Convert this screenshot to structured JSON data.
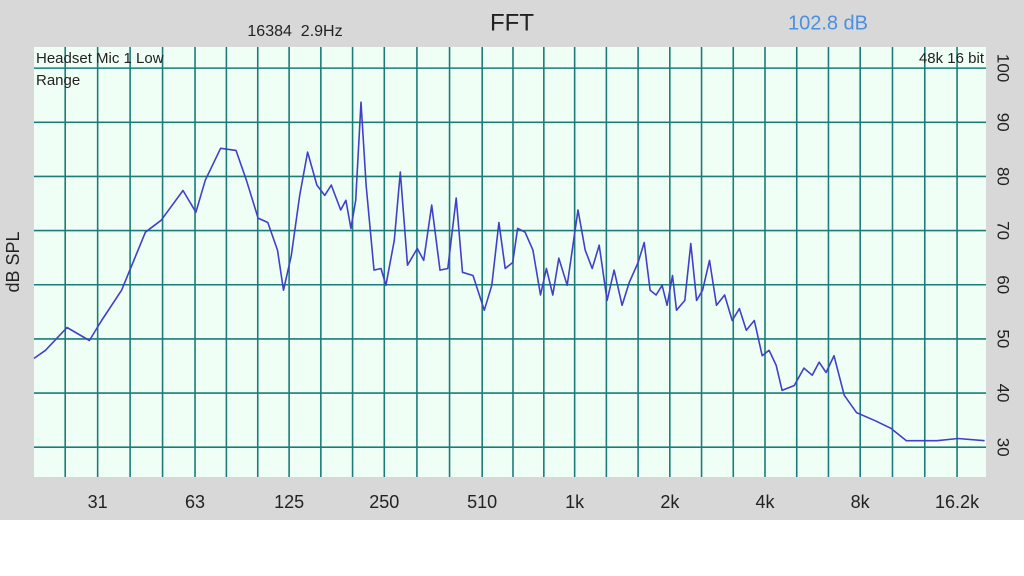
{
  "chart_data": {
    "type": "line",
    "title": "FFT",
    "info": "16384  2.9Hz",
    "level": "102.8 dB",
    "device": "Headset Mic 1 Low",
    "mode": "Range",
    "format": "48k 16 bit",
    "y_label": "dB SPL",
    "log_x": true,
    "grid": true,
    "color": "#4040c8",
    "xlim": [
      19.5,
      20000
    ],
    "ylim": [
      24.5,
      103.9
    ],
    "xticks": [
      31,
      63,
      125,
      250,
      510,
      {
        "value": 1000,
        "label": "1k"
      },
      {
        "value": 2000,
        "label": "2k"
      },
      {
        "value": 4000,
        "label": "4k"
      },
      {
        "value": 8000,
        "label": "8k"
      },
      {
        "value": 16200,
        "label": "16.2k"
      }
    ],
    "yticks": [
      30,
      40,
      50,
      60,
      70,
      80,
      90,
      100
    ],
    "x": [
      19.5,
      21.2,
      24.8,
      29.2,
      31.9,
      36.9,
      43.9,
      49.2,
      57.7,
      63.4,
      67.9,
      75.9,
      84.9,
      91.6,
      99.7,
      107,
      114.9,
      120,
      127,
      135,
      143,
      153,
      162,
      170,
      182,
      189,
      196,
      203,
      211,
      219,
      232,
      244,
      253,
      269,
      281,
      296,
      318,
      333,
      353,
      375,
      397,
      422,
      442,
      477,
      518,
      547,
      576,
      603,
      637,
      660,
      697,
      738,
      780,
      814,
      853,
      891,
      947,
      1025,
      1080,
      1136,
      1196,
      1267,
      1333,
      1413,
      1488,
      1587,
      1660,
      1733,
      1810,
      1890,
      1960,
      2040,
      2100,
      2230,
      2330,
      2430,
      2540,
      2670,
      2810,
      2980,
      3150,
      3320,
      3490,
      3700,
      3920,
      4120,
      4340,
      4530,
      4950,
      5310,
      5640,
      5930,
      6240,
      6610,
      7120,
      7790,
      8920,
      10000,
      11200,
      14000,
      16300,
      19800
    ],
    "values": [
      46.4,
      47.9,
      52.1,
      49.7,
      53.4,
      59.0,
      69.7,
      71.9,
      77.4,
      73.4,
      79.3,
      85.2,
      84.8,
      79.3,
      72.3,
      71.5,
      66.4,
      59.0,
      65.4,
      76.5,
      84.5,
      78.4,
      76.5,
      78.4,
      73.8,
      75.6,
      70.4,
      75.6,
      93.7,
      78.4,
      62.7,
      63.0,
      59.9,
      68.2,
      80.8,
      63.6,
      66.7,
      64.5,
      74.7,
      62.7,
      63.0,
      76.0,
      62.3,
      61.7,
      55.3,
      59.9,
      71.5,
      63.0,
      64.1,
      70.4,
      69.7,
      66.4,
      58.1,
      63.0,
      58.1,
      64.9,
      59.9,
      73.8,
      66.4,
      63.0,
      67.3,
      57.1,
      62.7,
      56.2,
      60.4,
      64.1,
      67.8,
      59.0,
      58.1,
      59.9,
      56.2,
      61.7,
      55.3,
      57.1,
      67.6,
      57.1,
      59.0,
      64.5,
      56.2,
      58.1,
      53.4,
      55.6,
      51.6,
      53.4,
      46.9,
      47.9,
      45.1,
      40.5,
      41.4,
      44.6,
      43.3,
      45.7,
      43.8,
      46.9,
      39.6,
      36.4,
      34.9,
      33.5,
      31.2,
      31.2,
      31.6,
      31.2
    ]
  }
}
